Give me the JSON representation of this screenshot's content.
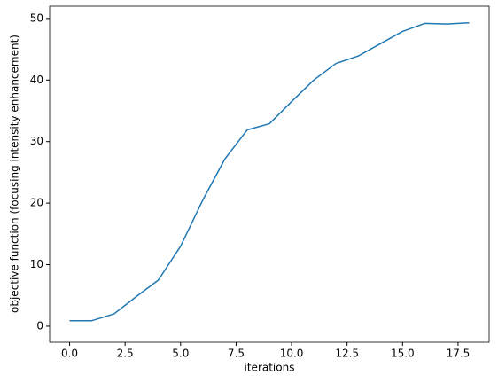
{
  "chart_data": {
    "type": "line",
    "xlabel": "iterations",
    "ylabel": "objective function (focusing intensity enhancement)",
    "x": [
      0,
      1,
      2,
      3,
      4,
      5,
      6,
      7,
      8,
      9,
      10,
      11,
      12,
      13,
      14,
      15,
      16,
      17,
      18
    ],
    "series": [
      {
        "color": "#1f77b4",
        "values": [
          0.9,
          0.9,
          2.0,
          4.8,
          7.5,
          13.0,
          20.5,
          27.2,
          31.9,
          32.9,
          36.5,
          40.0,
          42.7,
          43.9,
          45.9,
          47.9,
          49.2,
          49.1,
          49.3
        ]
      }
    ],
    "xlim": [
      -0.9,
      18.9
    ],
    "ylim": [
      -2.6,
      52
    ],
    "xticks": [
      {
        "value": 0,
        "label": "0.0"
      },
      {
        "value": 2.5,
        "label": "2.5"
      },
      {
        "value": 5,
        "label": "5.0"
      },
      {
        "value": 7.5,
        "label": "7.5"
      },
      {
        "value": 10,
        "label": "10.0"
      },
      {
        "value": 12.5,
        "label": "12.5"
      },
      {
        "value": 15,
        "label": "15.0"
      },
      {
        "value": 17.5,
        "label": "17.5"
      }
    ],
    "yticks": [
      0,
      10,
      20,
      30,
      40,
      50
    ],
    "grid": false
  }
}
